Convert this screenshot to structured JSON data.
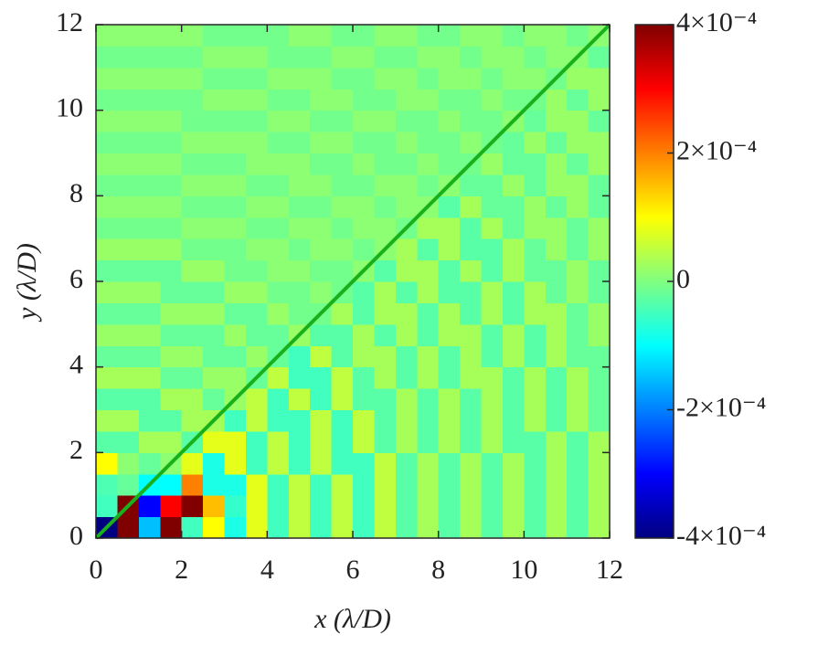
{
  "chart_data": {
    "type": "heatmap",
    "xlabel": "x (λ/D)",
    "ylabel": "y (λ/D)",
    "xlim": [
      0,
      12
    ],
    "ylim": [
      0,
      12
    ],
    "xticks": [
      0,
      2,
      4,
      6,
      8,
      10,
      12
    ],
    "yticks": [
      0,
      2,
      4,
      6,
      8,
      10,
      12
    ],
    "colormap": "jet",
    "clim": [
      -0.0004,
      0.0004
    ],
    "cticks": [
      {
        "value": -0.0004,
        "label": "-4×10⁻⁴"
      },
      {
        "value": -0.0002,
        "label": "-2×10⁻⁴"
      },
      0,
      {
        "value": 0.0002,
        "label": "2×10⁻⁴"
      },
      {
        "value": 0.0004,
        "label": "4×10⁻⁴"
      }
    ],
    "line": {
      "x": [
        0,
        12
      ],
      "y": [
        0,
        12
      ],
      "color": "#19b01c"
    },
    "z": [
      [
        -0.0004,
        0.0004,
        -0.00015,
        0.0004,
        -5e-05,
        0.0001,
        -8e-05,
        8e-05,
        -5e-05,
        5e-05,
        -5e-05,
        5e-05,
        -5e-05,
        5e-05,
        -3e-05,
        3e-05,
        -3e-05,
        3e-05,
        -3e-05,
        3e-05,
        -3e-05,
        3e-05,
        -3e-05,
        3e-05
      ],
      [
        -5e-05,
        0.0004,
        -0.0003,
        0.0003,
        0.0004,
        0.00015,
        -6e-05,
        8e-05,
        -5e-05,
        5e-05,
        -5e-05,
        5e-05,
        -5e-05,
        5e-05,
        -3e-05,
        3e-05,
        -3e-05,
        3e-05,
        -3e-05,
        3e-05,
        -3e-05,
        3e-05,
        -3e-05,
        3e-05
      ],
      [
        -4e-05,
        -2e-05,
        -0.0001,
        -0.0001,
        0.0002,
        -8e-05,
        -8e-05,
        8e-05,
        -5e-05,
        5e-05,
        -5e-05,
        5e-05,
        -5e-05,
        5e-05,
        -3e-05,
        3e-05,
        -3e-05,
        3e-05,
        -3e-05,
        3e-05,
        -3e-05,
        3e-05,
        -3e-05,
        3e-05
      ],
      [
        0.0001,
        1e-05,
        -2e-05,
        1e-05,
        8e-05,
        -8e-05,
        8e-05,
        -5e-05,
        5e-05,
        -5e-05,
        5e-05,
        -5e-05,
        -5e-05,
        5e-05,
        -3e-05,
        3e-05,
        -3e-05,
        3e-05,
        -3e-05,
        3e-05,
        -3e-05,
        3e-05,
        -3e-05,
        3e-05
      ],
      [
        -3e-05,
        -3e-05,
        3e-05,
        3e-05,
        -3e-05,
        8e-05,
        8e-05,
        -5e-05,
        5e-05,
        -5e-05,
        5e-05,
        -5e-05,
        5e-05,
        -3e-05,
        3e-05,
        -3e-05,
        3e-05,
        -3e-05,
        3e-05,
        -3e-05,
        -3e-05,
        3e-05,
        -3e-05,
        3e-05
      ],
      [
        3e-05,
        3e-05,
        -3e-05,
        -3e-05,
        3e-05,
        3e-05,
        -5e-05,
        5e-05,
        -5e-05,
        -5e-05,
        5e-05,
        -5e-05,
        5e-05,
        -3e-05,
        3e-05,
        -3e-05,
        3e-05,
        -3e-05,
        3e-05,
        -3e-05,
        3e-05,
        -3e-05,
        3e-05,
        -2e-05
      ],
      [
        -3e-05,
        -3e-05,
        -3e-05,
        3e-05,
        3e-05,
        -2e-05,
        2e-05,
        5e-05,
        -5e-05,
        5e-05,
        -5e-05,
        5e-05,
        -3e-05,
        -3e-05,
        3e-05,
        -3e-05,
        3e-05,
        -3e-05,
        3e-05,
        -3e-05,
        3e-05,
        -3e-05,
        3e-05,
        -2e-05
      ],
      [
        3e-05,
        3e-05,
        3e-05,
        -2e-05,
        -2e-05,
        2e-05,
        2e-05,
        -2e-05,
        5e-05,
        -5e-05,
        -5e-05,
        5e-05,
        -3e-05,
        3e-05,
        -3e-05,
        3e-05,
        -3e-05,
        3e-05,
        3e-05,
        -3e-05,
        3e-05,
        -3e-05,
        3e-05,
        -2e-05
      ],
      [
        -2e-05,
        -2e-05,
        -2e-05,
        2e-05,
        2e-05,
        -2e-05,
        -2e-05,
        2e-05,
        -2e-05,
        -5e-05,
        5e-05,
        -3e-05,
        3e-05,
        3e-05,
        -3e-05,
        3e-05,
        -3e-05,
        3e-05,
        -3e-05,
        3e-05,
        -3e-05,
        3e-05,
        -2e-05,
        -2e-05
      ],
      [
        2e-05,
        2e-05,
        2e-05,
        -2e-05,
        -2e-05,
        -2e-05,
        2e-05,
        -2e-05,
        -2e-05,
        2e-05,
        -3e-05,
        -3e-05,
        3e-05,
        -3e-05,
        3e-05,
        -3e-05,
        3e-05,
        3e-05,
        -3e-05,
        3e-05,
        -3e-05,
        3e-05,
        -2e-05,
        2e-05
      ],
      [
        -2e-05,
        -2e-05,
        -2e-05,
        2e-05,
        2e-05,
        2e-05,
        -2e-05,
        -2e-05,
        2e-05,
        -1e-05,
        -1e-05,
        3e-05,
        -3e-05,
        3e-05,
        3e-05,
        -3e-05,
        3e-05,
        -3e-05,
        3e-05,
        -3e-05,
        3e-05,
        3e-05,
        -2e-05,
        2e-05
      ],
      [
        2e-05,
        2e-05,
        2e-05,
        -2e-05,
        -2e-05,
        -2e-05,
        2e-05,
        2e-05,
        -1e-05,
        -1e-05,
        1e-05,
        -1e-05,
        -3e-05,
        3e-05,
        -3e-05,
        3e-05,
        -3e-05,
        -3e-05,
        3e-05,
        -3e-05,
        3e-05,
        -2e-05,
        2e-05,
        -2e-05
      ],
      [
        -2e-05,
        -2e-05,
        -2e-05,
        -2e-05,
        2e-05,
        2e-05,
        -1e-05,
        -1e-05,
        1e-05,
        1e-05,
        -1e-05,
        -1e-05,
        1e-05,
        -3e-05,
        3e-05,
        3e-05,
        -3e-05,
        3e-05,
        -3e-05,
        3e-05,
        -2e-05,
        -2e-05,
        2e-05,
        -2e-05
      ],
      [
        2e-05,
        2e-05,
        2e-05,
        2e-05,
        -1e-05,
        -1e-05,
        -1e-05,
        1e-05,
        1e-05,
        -1e-05,
        1e-05,
        1e-05,
        -1e-05,
        1e-05,
        3e-05,
        -3e-05,
        3e-05,
        -3e-05,
        -3e-05,
        3e-05,
        -2e-05,
        2e-05,
        -2e-05,
        2e-05
      ],
      [
        -1e-05,
        -1e-05,
        -1e-05,
        -1e-05,
        1e-05,
        1e-05,
        1e-05,
        -1e-05,
        -1e-05,
        1e-05,
        1e-05,
        -1e-05,
        1e-05,
        1e-05,
        -1e-05,
        3e-05,
        3e-05,
        -3e-05,
        3e-05,
        -2e-05,
        2e-05,
        2e-05,
        -2e-05,
        2e-05
      ],
      [
        1e-05,
        1e-05,
        1e-05,
        1e-05,
        -1e-05,
        -1e-05,
        -1e-05,
        1e-05,
        1e-05,
        -1e-05,
        -1e-05,
        1e-05,
        1e-05,
        -1e-05,
        1e-05,
        1e-05,
        -3e-05,
        3e-05,
        -2e-05,
        -2e-05,
        2e-05,
        -2e-05,
        2e-05,
        -2e-05
      ],
      [
        -1e-05,
        -1e-05,
        -1e-05,
        -1e-05,
        1e-05,
        1e-05,
        1e-05,
        -1e-05,
        -1e-05,
        1e-05,
        1e-05,
        -1e-05,
        -1e-05,
        1e-05,
        1e-05,
        -1e-05,
        1e-05,
        -2e-05,
        -2e-05,
        2e-05,
        -2e-05,
        2e-05,
        2e-05,
        -2e-05
      ],
      [
        1e-05,
        1e-05,
        1e-05,
        1e-05,
        -1e-05,
        -1e-05,
        -1e-05,
        1e-05,
        1e-05,
        1e-05,
        -1e-05,
        -1e-05,
        1e-05,
        -1e-05,
        -1e-05,
        1e-05,
        -1e-05,
        -1e-05,
        2e-05,
        -2e-05,
        -2e-05,
        2e-05,
        -2e-05,
        2e-05
      ],
      [
        -1e-05,
        -1e-05,
        -1e-05,
        -1e-05,
        1e-05,
        1e-05,
        1e-05,
        1e-05,
        -1e-05,
        -1e-05,
        1e-05,
        1e-05,
        -1e-05,
        -1e-05,
        1e-05,
        -1e-05,
        -1e-05,
        1e-05,
        -1e-05,
        -2e-05,
        2e-05,
        -2e-05,
        2e-05,
        2e-05
      ],
      [
        1e-05,
        1e-05,
        1e-05,
        1e-05,
        -1e-05,
        -1e-05,
        -1e-05,
        -1e-05,
        1e-05,
        1e-05,
        -1e-05,
        -1e-05,
        1e-05,
        1e-05,
        -1e-05,
        -1e-05,
        1e-05,
        -1e-05,
        -1e-05,
        1e-05,
        -2e-05,
        2e-05,
        2e-05,
        -2e-05
      ],
      [
        -1e-05,
        -1e-05,
        -1e-05,
        -1e-05,
        -1e-05,
        1e-05,
        1e-05,
        1e-05,
        -1e-05,
        -1e-05,
        1e-05,
        1e-05,
        -1e-05,
        -1e-05,
        1e-05,
        1e-05,
        -1e-05,
        -1e-05,
        1e-05,
        -1e-05,
        -1e-05,
        2e-05,
        -2e-05,
        2e-05
      ],
      [
        1e-05,
        1e-05,
        1e-05,
        1e-05,
        1e-05,
        -1e-05,
        -1e-05,
        -1e-05,
        1e-05,
        1e-05,
        1e-05,
        -1e-05,
        -1e-05,
        1e-05,
        1e-05,
        -1e-05,
        1e-05,
        1e-05,
        -1e-05,
        1e-05,
        1e-05,
        -1e-05,
        2e-05,
        2e-05
      ],
      [
        -1e-05,
        -1e-05,
        -1e-05,
        -1e-05,
        -1e-05,
        1e-05,
        1e-05,
        1e-05,
        -1e-05,
        -1e-05,
        -1e-05,
        1e-05,
        1e-05,
        -1e-05,
        -1e-05,
        1e-05,
        1e-05,
        -1e-05,
        1e-05,
        1e-05,
        -1e-05,
        1e-05,
        1e-05,
        -2e-05
      ],
      [
        1e-05,
        1e-05,
        1e-05,
        1e-05,
        1e-05,
        -1e-05,
        -1e-05,
        -1e-05,
        -1e-05,
        1e-05,
        1e-05,
        -1e-05,
        -1e-05,
        1e-05,
        1e-05,
        -1e-05,
        -1e-05,
        1e-05,
        1e-05,
        -1e-05,
        1e-05,
        1e-05,
        -1e-05,
        1e-05
      ]
    ]
  }
}
